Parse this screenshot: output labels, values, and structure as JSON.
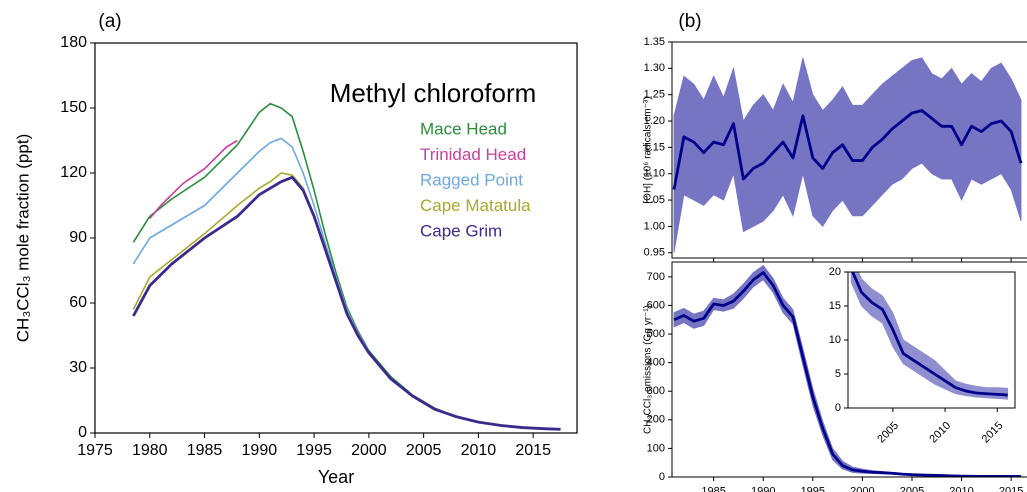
{
  "chart_data": [
    {
      "type": "line",
      "panel_label": "(a)",
      "title": "Methyl chloroform",
      "x_label": "Year",
      "y_label": "CH₃CCl₃ mole fraction (ppt)",
      "xlim": [
        1975,
        2019
      ],
      "ylim": [
        0,
        180
      ],
      "xticks": [
        1975,
        1980,
        1985,
        1990,
        1995,
        2000,
        2005,
        2010,
        2015
      ],
      "yticks": [
        0,
        30,
        60,
        90,
        120,
        150,
        180
      ],
      "legend": "upper right",
      "series": [
        {
          "name": "Mace Head",
          "color": "#2e8b3e",
          "x": [
            1978.5,
            1980,
            1982,
            1985,
            1988,
            1990,
            1991,
            1992,
            1993,
            1994,
            1995,
            1996,
            1997,
            1998,
            1999,
            2000,
            2002,
            2004,
            2006,
            2008,
            2010,
            2012,
            2014,
            2016,
            2017.5
          ],
          "values": [
            88,
            100,
            108,
            118,
            133,
            148,
            152,
            150,
            146,
            130,
            112,
            92,
            74,
            58,
            47,
            38,
            26,
            17.5,
            11.5,
            7.5,
            5,
            3.5,
            2.5,
            2,
            1.7
          ]
        },
        {
          "name": "Trinidad Head",
          "color": "#c2449a",
          "x": [
            1980,
            1981,
            1983,
            1985,
            1987,
            1988
          ],
          "values": [
            99,
            105,
            115,
            122,
            132,
            135
          ]
        },
        {
          "name": "Ragged Point",
          "color": "#6fa8dc",
          "x": [
            1978.5,
            1980,
            1982,
            1985,
            1988,
            1990,
            1991,
            1992,
            1993,
            1994,
            1995,
            1996,
            1997,
            1998,
            1999,
            2000
          ],
          "values": [
            78,
            90,
            96,
            105,
            120,
            130,
            134,
            136,
            132,
            120,
            105,
            88,
            72,
            57,
            46,
            38
          ]
        },
        {
          "name": "Cape Matatula",
          "color": "#a8a832",
          "x": [
            1978.5,
            1980,
            1982,
            1985,
            1988,
            1990,
            1991,
            1992,
            1993,
            1994,
            1995,
            1996,
            1997,
            1998,
            1999,
            2000
          ],
          "values": [
            57,
            72,
            80,
            92,
            105,
            113,
            116,
            120,
            119,
            113,
            100,
            86,
            70,
            56,
            45,
            37
          ]
        },
        {
          "name": "Cape Grim",
          "color": "#3c2a8c",
          "x": [
            1978.5,
            1980,
            1982,
            1985,
            1988,
            1990,
            1991,
            1992,
            1993,
            1994,
            1995,
            1996,
            1997,
            1998,
            1999,
            2000,
            2002,
            2004,
            2006,
            2008,
            2010,
            2012,
            2014,
            2016,
            2017.5
          ],
          "values": [
            54,
            68,
            78,
            90,
            100,
            110,
            113,
            116,
            118,
            112,
            100,
            85,
            70,
            55,
            45,
            37,
            25,
            17,
            11,
            7.5,
            5,
            3.5,
            2.5,
            2,
            1.7
          ]
        }
      ]
    },
    {
      "type": "line",
      "panel_label": "(b)",
      "y_label": "[OH] (10⁶ radicals cm⁻³)",
      "xlim": [
        1980.8,
        2016.6
      ],
      "ylim": [
        0.94,
        1.35
      ],
      "yticks": [
        0.95,
        {
          "value": 1,
          "label": "1.00"
        },
        1.05,
        {
          "value": 1.1,
          "label": "1.10"
        },
        1.15,
        {
          "value": 1.2,
          "label": "1.20"
        },
        1.25,
        {
          "value": 1.3,
          "label": "1.30"
        },
        1.35
      ],
      "x": [
        1981,
        1982,
        1983,
        1984,
        1985,
        1986,
        1987,
        1988,
        1989,
        1990,
        1991,
        1992,
        1993,
        1994,
        1995,
        1996,
        1997,
        1998,
        1999,
        2000,
        2001,
        2002,
        2003,
        2004,
        2005,
        2006,
        2007,
        2008,
        2009,
        2010,
        2011,
        2012,
        2013,
        2014,
        2015,
        2016
      ],
      "series": [
        {
          "color": "#00008b",
          "band_color": "#7575c4",
          "values": [
            1.07,
            1.17,
            1.16,
            1.14,
            1.16,
            1.155,
            1.195,
            1.09,
            1.11,
            1.12,
            1.14,
            1.16,
            1.13,
            1.21,
            1.13,
            1.11,
            1.14,
            1.155,
            1.125,
            1.125,
            1.15,
            1.165,
            1.185,
            1.2,
            1.215,
            1.22,
            1.205,
            1.19,
            1.19,
            1.155,
            1.19,
            1.18,
            1.195,
            1.2,
            1.18,
            1.12
          ],
          "upper": [
            1.21,
            1.285,
            1.27,
            1.24,
            1.285,
            1.245,
            1.3,
            1.2,
            1.23,
            1.25,
            1.22,
            1.27,
            1.235,
            1.32,
            1.25,
            1.22,
            1.24,
            1.265,
            1.23,
            1.23,
            1.25,
            1.27,
            1.285,
            1.3,
            1.315,
            1.32,
            1.29,
            1.28,
            1.3,
            1.27,
            1.29,
            1.275,
            1.3,
            1.31,
            1.28,
            1.24
          ],
          "lower": [
            0.95,
            1.06,
            1.05,
            1.04,
            1.06,
            1.05,
            1.1,
            0.99,
            1.0,
            1.01,
            1.03,
            1.06,
            1.02,
            1.1,
            1.02,
            1.0,
            1.03,
            1.05,
            1.02,
            1.02,
            1.04,
            1.06,
            1.08,
            1.09,
            1.11,
            1.12,
            1.1,
            1.09,
            1.09,
            1.05,
            1.09,
            1.08,
            1.09,
            1.1,
            1.07,
            1.01
          ]
        }
      ]
    },
    {
      "type": "line",
      "y_label": "CH₃CCl₃ emissions (Gg yr⁻¹)",
      "xlim": [
        1980.8,
        2016.6
      ],
      "ylim": [
        0,
        752
      ],
      "xticks": [
        1985,
        1990,
        1995,
        2000,
        2005,
        2010,
        2015
      ],
      "yticks": [
        0,
        100,
        200,
        300,
        400,
        500,
        600,
        700
      ],
      "x": [
        1981,
        1982,
        1983,
        1984,
        1985,
        1986,
        1987,
        1988,
        1989,
        1990,
        1991,
        1992,
        1993,
        1994,
        1995,
        1996,
        1997,
        1998,
        1999,
        2000,
        2001,
        2002,
        2003,
        2004,
        2005,
        2006,
        2007,
        2008,
        2009,
        2010,
        2011,
        2012,
        2013,
        2014,
        2015,
        2016
      ],
      "series": [
        {
          "color": "#00008b",
          "band_color": "#7575c4",
          "values": [
            550,
            565,
            545,
            555,
            605,
            600,
            615,
            650,
            690,
            715,
            670,
            600,
            560,
            420,
            280,
            170,
            80,
            40,
            25,
            20,
            17,
            15,
            13,
            10,
            8,
            7,
            6,
            5,
            4,
            3,
            2.5,
            2.2,
            2,
            2,
            2,
            1.8
          ],
          "upper": [
            575,
            590,
            570,
            580,
            625,
            620,
            640,
            675,
            715,
            740,
            695,
            625,
            585,
            450,
            310,
            195,
            100,
            55,
            35,
            28,
            22,
            19,
            16,
            13,
            10,
            9,
            8,
            6.5,
            5,
            4,
            3.5,
            3,
            3,
            3,
            3,
            2.8
          ],
          "lower": [
            525,
            540,
            520,
            530,
            585,
            580,
            590,
            625,
            665,
            690,
            645,
            575,
            535,
            390,
            250,
            145,
            60,
            28,
            16,
            13,
            12,
            11,
            10,
            7,
            6,
            5,
            4.5,
            3.5,
            3,
            2,
            1.8,
            1.6,
            1.4,
            1.4,
            1.4,
            1.2
          ]
        }
      ]
    },
    {
      "type": "line",
      "xlim": [
        2000.7,
        2016.7
      ],
      "ylim": [
        0,
        20
      ],
      "xticks": [
        2005,
        2010,
        2015
      ],
      "yticks": [
        0,
        5,
        10,
        15,
        20
      ],
      "x": [
        2001,
        2002,
        2003,
        2004,
        2005,
        2006,
        2007,
        2008,
        2009,
        2010,
        2011,
        2012,
        2013,
        2014,
        2015,
        2016
      ],
      "series": [
        {
          "color": "#00008b",
          "band_color": "#8f8fd0",
          "values": [
            20.5,
            17,
            15.5,
            14.5,
            11.5,
            8,
            7,
            6,
            5,
            4,
            3,
            2.5,
            2.2,
            2.1,
            2,
            1.9
          ],
          "upper": [
            22.5,
            19,
            17.5,
            16.5,
            14,
            10,
            9,
            8,
            7,
            5.5,
            4,
            3.5,
            3.2,
            3,
            3,
            2.9
          ],
          "lower": [
            18.5,
            15,
            13.5,
            12.5,
            9,
            6.5,
            5.5,
            4.5,
            3.5,
            2.8,
            2.1,
            1.8,
            1.6,
            1.5,
            1.4,
            1.3
          ]
        }
      ]
    }
  ]
}
